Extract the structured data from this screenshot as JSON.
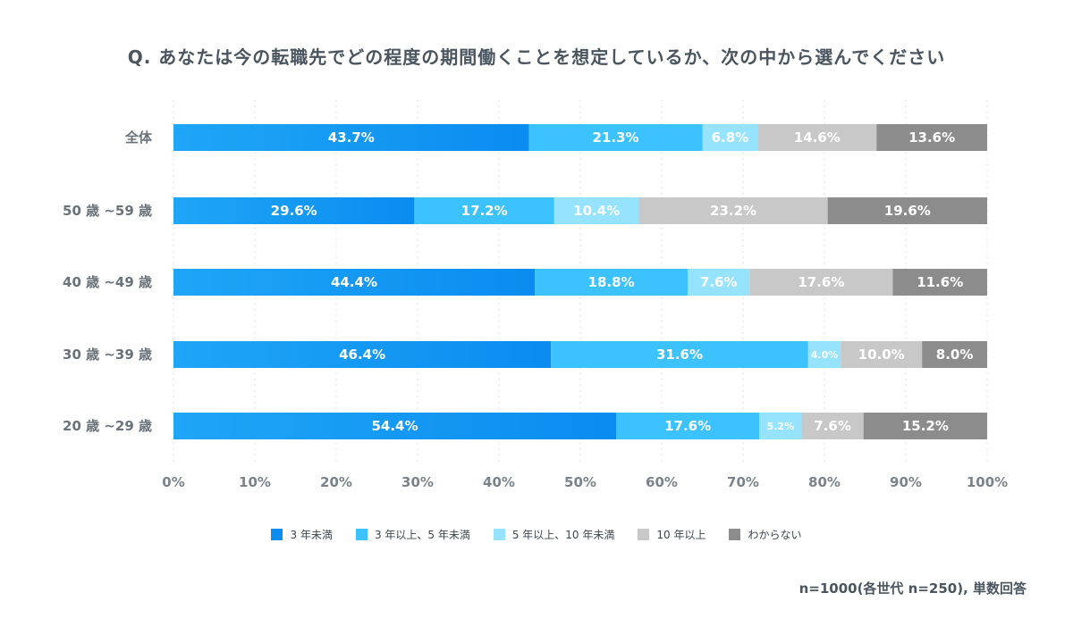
{
  "chart_data": {
    "type": "bar",
    "orientation": "horizontal",
    "stacked": true,
    "percent_stacked": true,
    "title": "Q. あなたは今の転職先でどの程度の期間働くことを想定しているか、次の中から選んでください",
    "categories": [
      "全体",
      "50歳 ~59歳",
      "40歳 ~49歳",
      "30歳 ~39歳",
      "20歳 ~29歳"
    ],
    "series": [
      {
        "name": "3年未満",
        "color": "#0a8cf0",
        "color2": "#1fa6f6",
        "values": [
          43.7,
          29.6,
          44.4,
          46.4,
          54.4
        ],
        "labels": [
          "43.7%",
          "29.6%",
          "44.4%",
          "46.4%",
          "54.4%"
        ]
      },
      {
        "name": "3年以上、5年未満",
        "color": "#3cc3ff",
        "values": [
          21.3,
          17.2,
          18.8,
          31.6,
          17.6
        ],
        "labels": [
          "21.3%",
          "17.2%",
          "18.8%",
          "31.6%",
          "17.6%"
        ]
      },
      {
        "name": "5年以上、10年未満",
        "color": "#96e3ff",
        "values": [
          6.8,
          10.4,
          7.6,
          4.0,
          5.2
        ],
        "labels": [
          "6.8%",
          "10.4%",
          "7.6%",
          "4.0%",
          "5.2%"
        ]
      },
      {
        "name": "10年以上",
        "color": "#c8c8c8",
        "values": [
          14.6,
          23.2,
          17.6,
          10.0,
          7.6
        ],
        "labels": [
          "14.6%",
          "23.2%",
          "17.6%",
          "10.0%",
          "7.6%"
        ]
      },
      {
        "name": "わからない",
        "color": "#8c8c8c",
        "values": [
          13.6,
          19.6,
          11.6,
          8.0,
          15.2
        ],
        "labels": [
          "13.6%",
          "19.6%",
          "11.6%",
          "8.0%",
          "15.2%"
        ]
      }
    ],
    "xlim": [
      0,
      100
    ],
    "xticks": [
      0,
      10,
      20,
      30,
      40,
      50,
      60,
      70,
      80,
      90,
      100
    ],
    "xtick_labels": [
      "0%",
      "10%",
      "20%",
      "30%",
      "40%",
      "50%",
      "60%",
      "70%",
      "80%",
      "90%",
      "100%"
    ],
    "grid": "vertical dotted",
    "legend_position": "bottom-center",
    "legend_labels": [
      "3 年未満",
      "3 年以上、5 年未満",
      "5 年以上、10 年未満",
      "10 年以上",
      "わからない"
    ],
    "category_labels": [
      "全体",
      "50 歳 ~59 歳",
      "40 歳 ~49 歳",
      "30 歳 ~39 歳",
      "20 歳 ~29 歳"
    ]
  },
  "footnote": "n=1000(各世代 n=250), 単数回答"
}
